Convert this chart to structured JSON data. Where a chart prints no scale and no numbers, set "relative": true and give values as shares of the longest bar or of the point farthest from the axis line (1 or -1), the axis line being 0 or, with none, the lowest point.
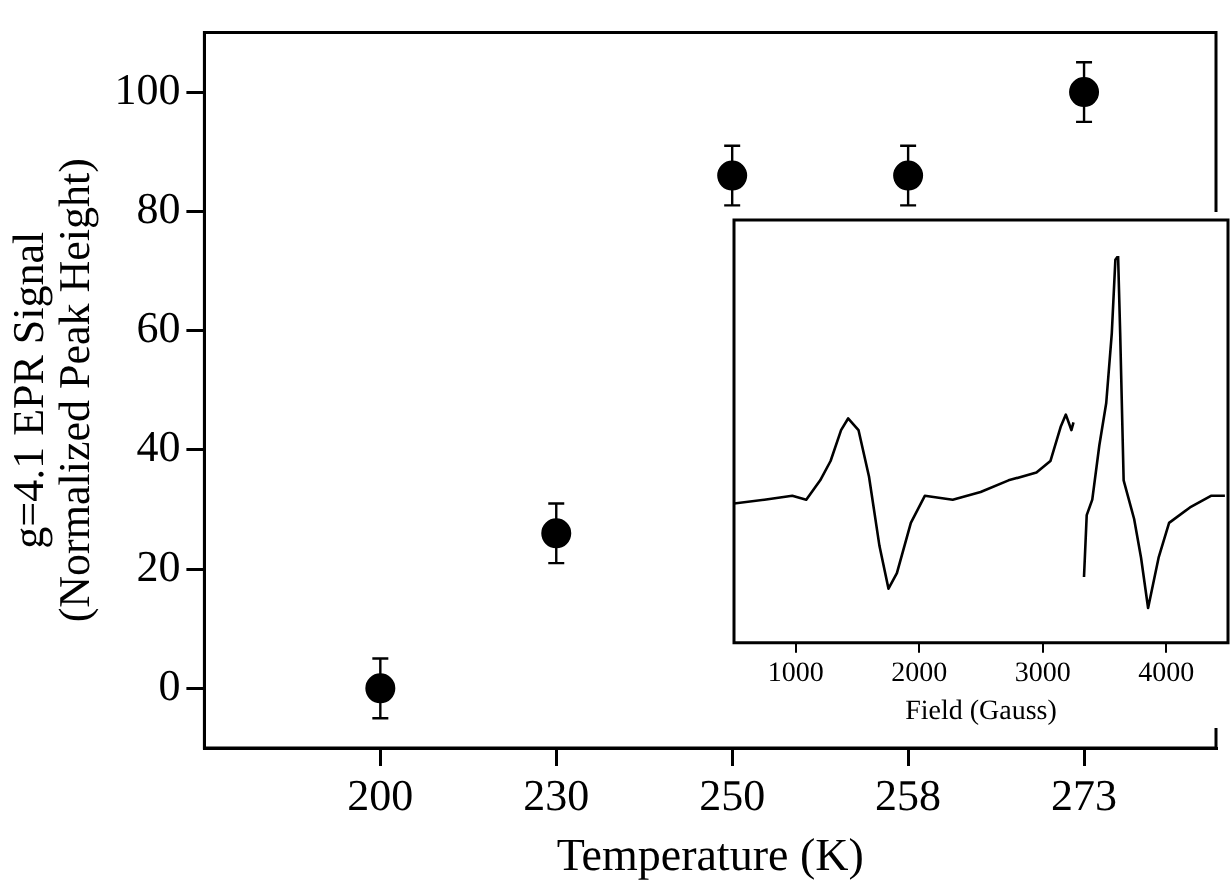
{
  "chart_data": [
    {
      "type": "scatter",
      "xlabel": "Temperature (K)",
      "ylabel": "g=4.1 EPR Signal\n(Normalized Peak Height)",
      "categories": [
        "200",
        "230",
        "250",
        "258",
        "273"
      ],
      "values": [
        0,
        26,
        86,
        86,
        100
      ],
      "errors": [
        5,
        5,
        5,
        5,
        5
      ],
      "color": "#000000",
      "marker": "circle",
      "ylim": [
        -10,
        110
      ],
      "yticks": [
        0,
        20,
        40,
        60,
        80,
        100
      ]
    },
    {
      "type": "line",
      "xlabel": "Field (Gauss)",
      "relative": true,
      "color": "#000000",
      "xlim": [
        500,
        4500
      ],
      "xticks": [
        1000,
        2000,
        3000,
        4000
      ],
      "x": [
        500,
        746,
        972,
        1085,
        1198,
        1282,
        1367,
        1424,
        1508,
        1593,
        1678,
        1751,
        1819,
        1932,
        2045,
        2271,
        2497,
        2723,
        2949,
        3062,
        3147,
        3187,
        3232,
        3249,
        3300,
        3334,
        3356,
        3401,
        3458,
        3514,
        3559,
        3588,
        3610,
        3627,
        3655,
        3740,
        3796,
        3853,
        3938,
        4023,
        4192,
        4362,
        4475
      ],
      "values": [
        0.36,
        0.37,
        0.38,
        0.37,
        0.42,
        0.47,
        0.55,
        0.58,
        0.55,
        0.43,
        0.25,
        0.14,
        0.18,
        0.31,
        0.38,
        0.37,
        0.39,
        0.42,
        0.44,
        0.47,
        0.56,
        0.59,
        0.55,
        0.57,
        null,
        0.17,
        0.33,
        0.37,
        0.51,
        0.62,
        0.8,
        0.99,
        1,
        0.8,
        0.42,
        0.32,
        0.22,
        0.09,
        0.22,
        0.31,
        0.35,
        0.38,
        0.38
      ]
    }
  ]
}
